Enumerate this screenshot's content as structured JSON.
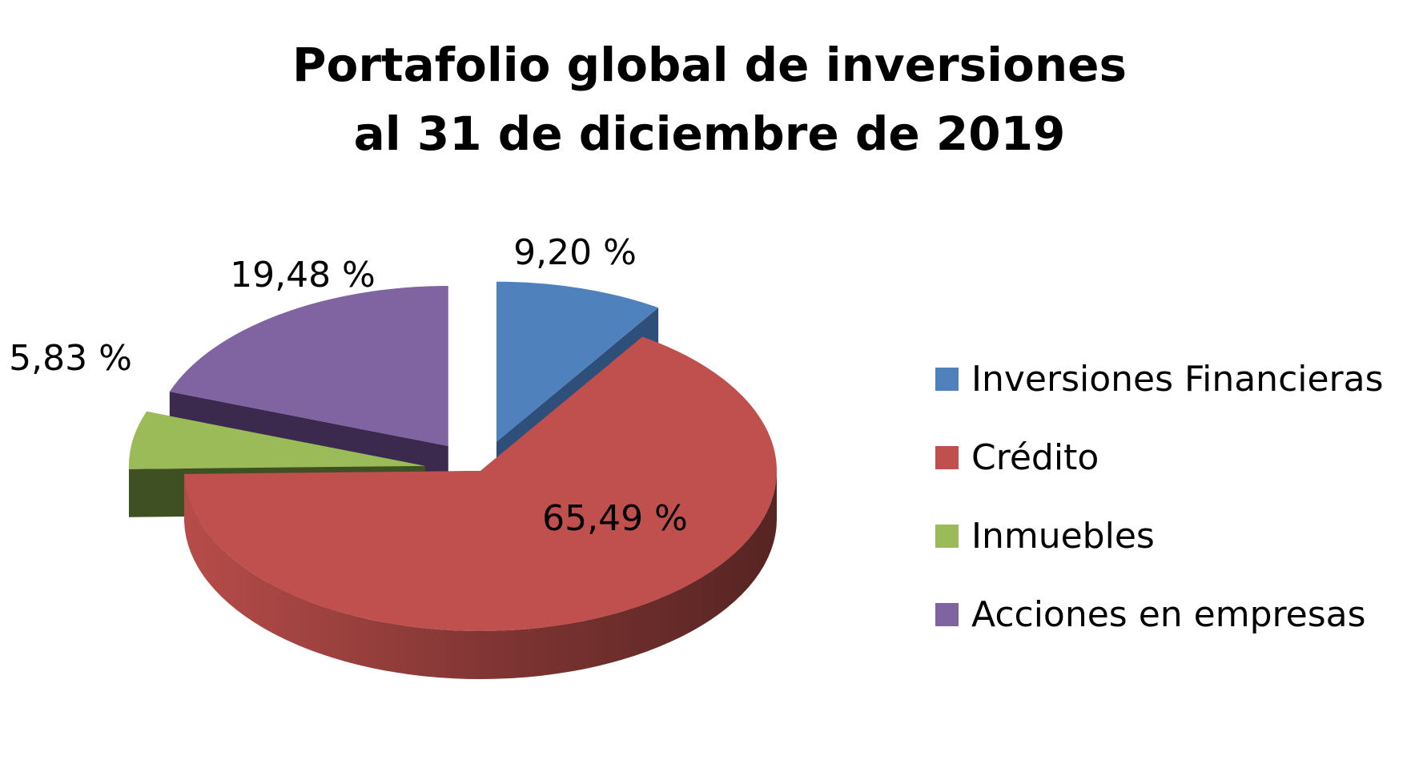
{
  "chart_data": {
    "type": "pie",
    "style": "3d-exploded",
    "title_lines": [
      "Portafolio global de inversiones",
      "al 31 de diciembre de 2019"
    ],
    "legend_position": "right",
    "slices": [
      {
        "name": "Inversiones Financieras",
        "value": 9.2,
        "label": "9,20 %",
        "color": "#4F81BD",
        "side_color": "#2E4F7A"
      },
      {
        "name": "Crédito",
        "value": 65.49,
        "label": "65,49 %",
        "color": "#C0504D",
        "side_color": "#7D2C2A"
      },
      {
        "name": "Inmuebles",
        "value": 5.83,
        "label": "5,83 %",
        "color": "#9BBB59",
        "side_color": "#3F5123"
      },
      {
        "name": "Acciones en empresas",
        "value": 19.48,
        "label": "19,48 %",
        "color": "#8064A2",
        "side_color": "#3B2A4E"
      }
    ]
  }
}
